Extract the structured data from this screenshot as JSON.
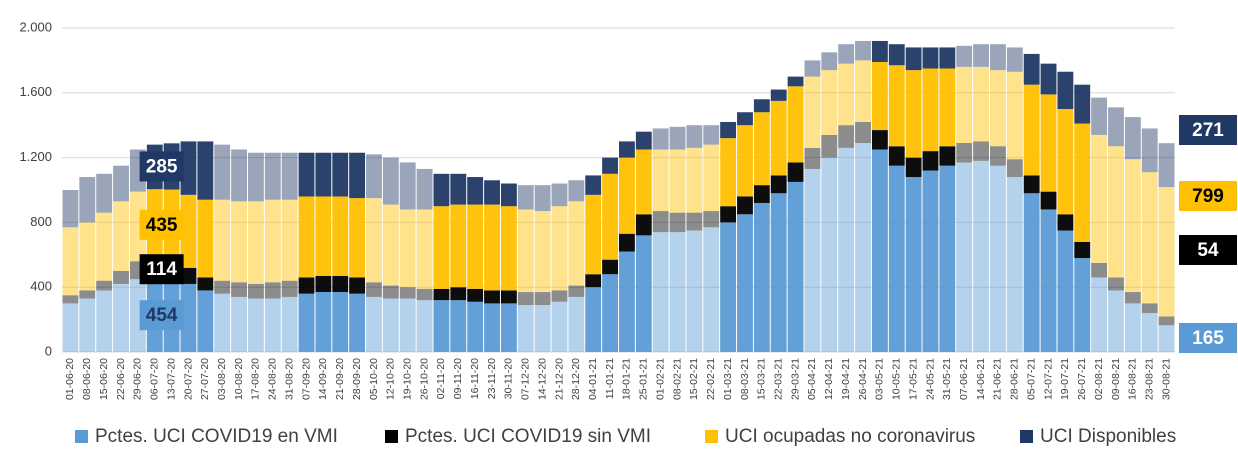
{
  "chart_data": {
    "type": "stacked-bar",
    "categories": [
      "01-06-20",
      "08-06-20",
      "15-06-20",
      "22-06-20",
      "29-06-20",
      "06-07-20",
      "13-07-20",
      "20-07-20",
      "27-07-20",
      "03-08-20",
      "10-08-20",
      "17-08-20",
      "24-08-20",
      "31-08-20",
      "07-09-20",
      "14-09-20",
      "21-09-20",
      "28-09-20",
      "05-10-20",
      "12-10-20",
      "19-10-20",
      "26-10-20",
      "02-11-20",
      "09-11-20",
      "16-11-20",
      "23-11-20",
      "30-11-20",
      "07-12-20",
      "14-12-20",
      "21-12-20",
      "28-12-20",
      "04-01-21",
      "11-01-21",
      "18-01-21",
      "25-01-21",
      "01-02-21",
      "08-02-21",
      "15-02-21",
      "22-02-21",
      "01-03-21",
      "08-03-21",
      "15-03-21",
      "22-03-21",
      "29-03-21",
      "05-04-21",
      "12-04-21",
      "19-04-21",
      "26-04-21",
      "03-05-21",
      "10-05-21",
      "17-05-21",
      "24-05-21",
      "31-05-21",
      "07-06-21",
      "14-06-21",
      "21-06-21",
      "28-06-21",
      "05-07-21",
      "12-07-21",
      "19-07-21",
      "26-07-21",
      "02-08-21",
      "09-08-21",
      "16-08-21",
      "23-08-21",
      "30-08-21"
    ],
    "series": [
      {
        "name": "Pctes. UCI COVID19 en VMI",
        "color": "#5b9bd5",
        "values": [
          300,
          330,
          380,
          420,
          450,
          460,
          454,
          420,
          380,
          360,
          340,
          330,
          330,
          340,
          360,
          370,
          370,
          360,
          340,
          330,
          330,
          320,
          320,
          320,
          310,
          300,
          300,
          290,
          290,
          310,
          340,
          400,
          480,
          620,
          720,
          740,
          740,
          750,
          770,
          800,
          850,
          920,
          980,
          1050,
          1130,
          1200,
          1260,
          1290,
          1250,
          1150,
          1080,
          1120,
          1150,
          1170,
          1180,
          1150,
          1080,
          980,
          880,
          750,
          580,
          460,
          380,
          300,
          240,
          165
        ]
      },
      {
        "name": "Pctes. UCI COVID19 sin VMI",
        "color": "#000000",
        "values": [
          50,
          50,
          60,
          80,
          110,
          115,
          114,
          100,
          80,
          80,
          90,
          90,
          100,
          100,
          100,
          100,
          100,
          100,
          90,
          80,
          70,
          70,
          70,
          80,
          80,
          80,
          80,
          80,
          80,
          70,
          70,
          80,
          90,
          110,
          130,
          130,
          120,
          110,
          100,
          100,
          110,
          110,
          110,
          120,
          130,
          140,
          140,
          130,
          120,
          120,
          120,
          120,
          120,
          120,
          120,
          120,
          110,
          110,
          110,
          100,
          100,
          90,
          80,
          70,
          60,
          54
        ]
      },
      {
        "name": "UCI ocupadas no coronavirus",
        "color": "#ffc000",
        "values": [
          420,
          420,
          420,
          430,
          430,
          430,
          435,
          450,
          480,
          500,
          500,
          510,
          510,
          500,
          500,
          490,
          490,
          490,
          520,
          500,
          480,
          490,
          510,
          510,
          520,
          530,
          520,
          510,
          500,
          520,
          520,
          490,
          530,
          470,
          400,
          380,
          390,
          400,
          410,
          420,
          440,
          450,
          460,
          470,
          440,
          400,
          380,
          380,
          420,
          500,
          540,
          510,
          480,
          470,
          460,
          470,
          540,
          560,
          600,
          650,
          730,
          790,
          810,
          820,
          810,
          799
        ]
      },
      {
        "name": "UCI Disponibles",
        "color": "#1f3864",
        "values": [
          230,
          280,
          240,
          220,
          260,
          275,
          285,
          330,
          360,
          340,
          320,
          300,
          290,
          290,
          270,
          270,
          270,
          280,
          270,
          290,
          290,
          250,
          200,
          190,
          170,
          150,
          140,
          150,
          160,
          140,
          130,
          120,
          100,
          100,
          110,
          130,
          140,
          140,
          120,
          100,
          80,
          80,
          70,
          60,
          100,
          110,
          120,
          120,
          130,
          130,
          140,
          130,
          130,
          130,
          140,
          160,
          150,
          190,
          190,
          230,
          240,
          230,
          240,
          260,
          270,
          271
        ]
      }
    ],
    "ylim": [
      0,
      2000
    ],
    "yticks": [
      0,
      400,
      800,
      {
        "value": 1200,
        "label": "1.200"
      },
      {
        "value": 1600,
        "label": "1.600"
      },
      {
        "value": 2000,
        "label": "2.000"
      }
    ],
    "grid": true
  }
}
